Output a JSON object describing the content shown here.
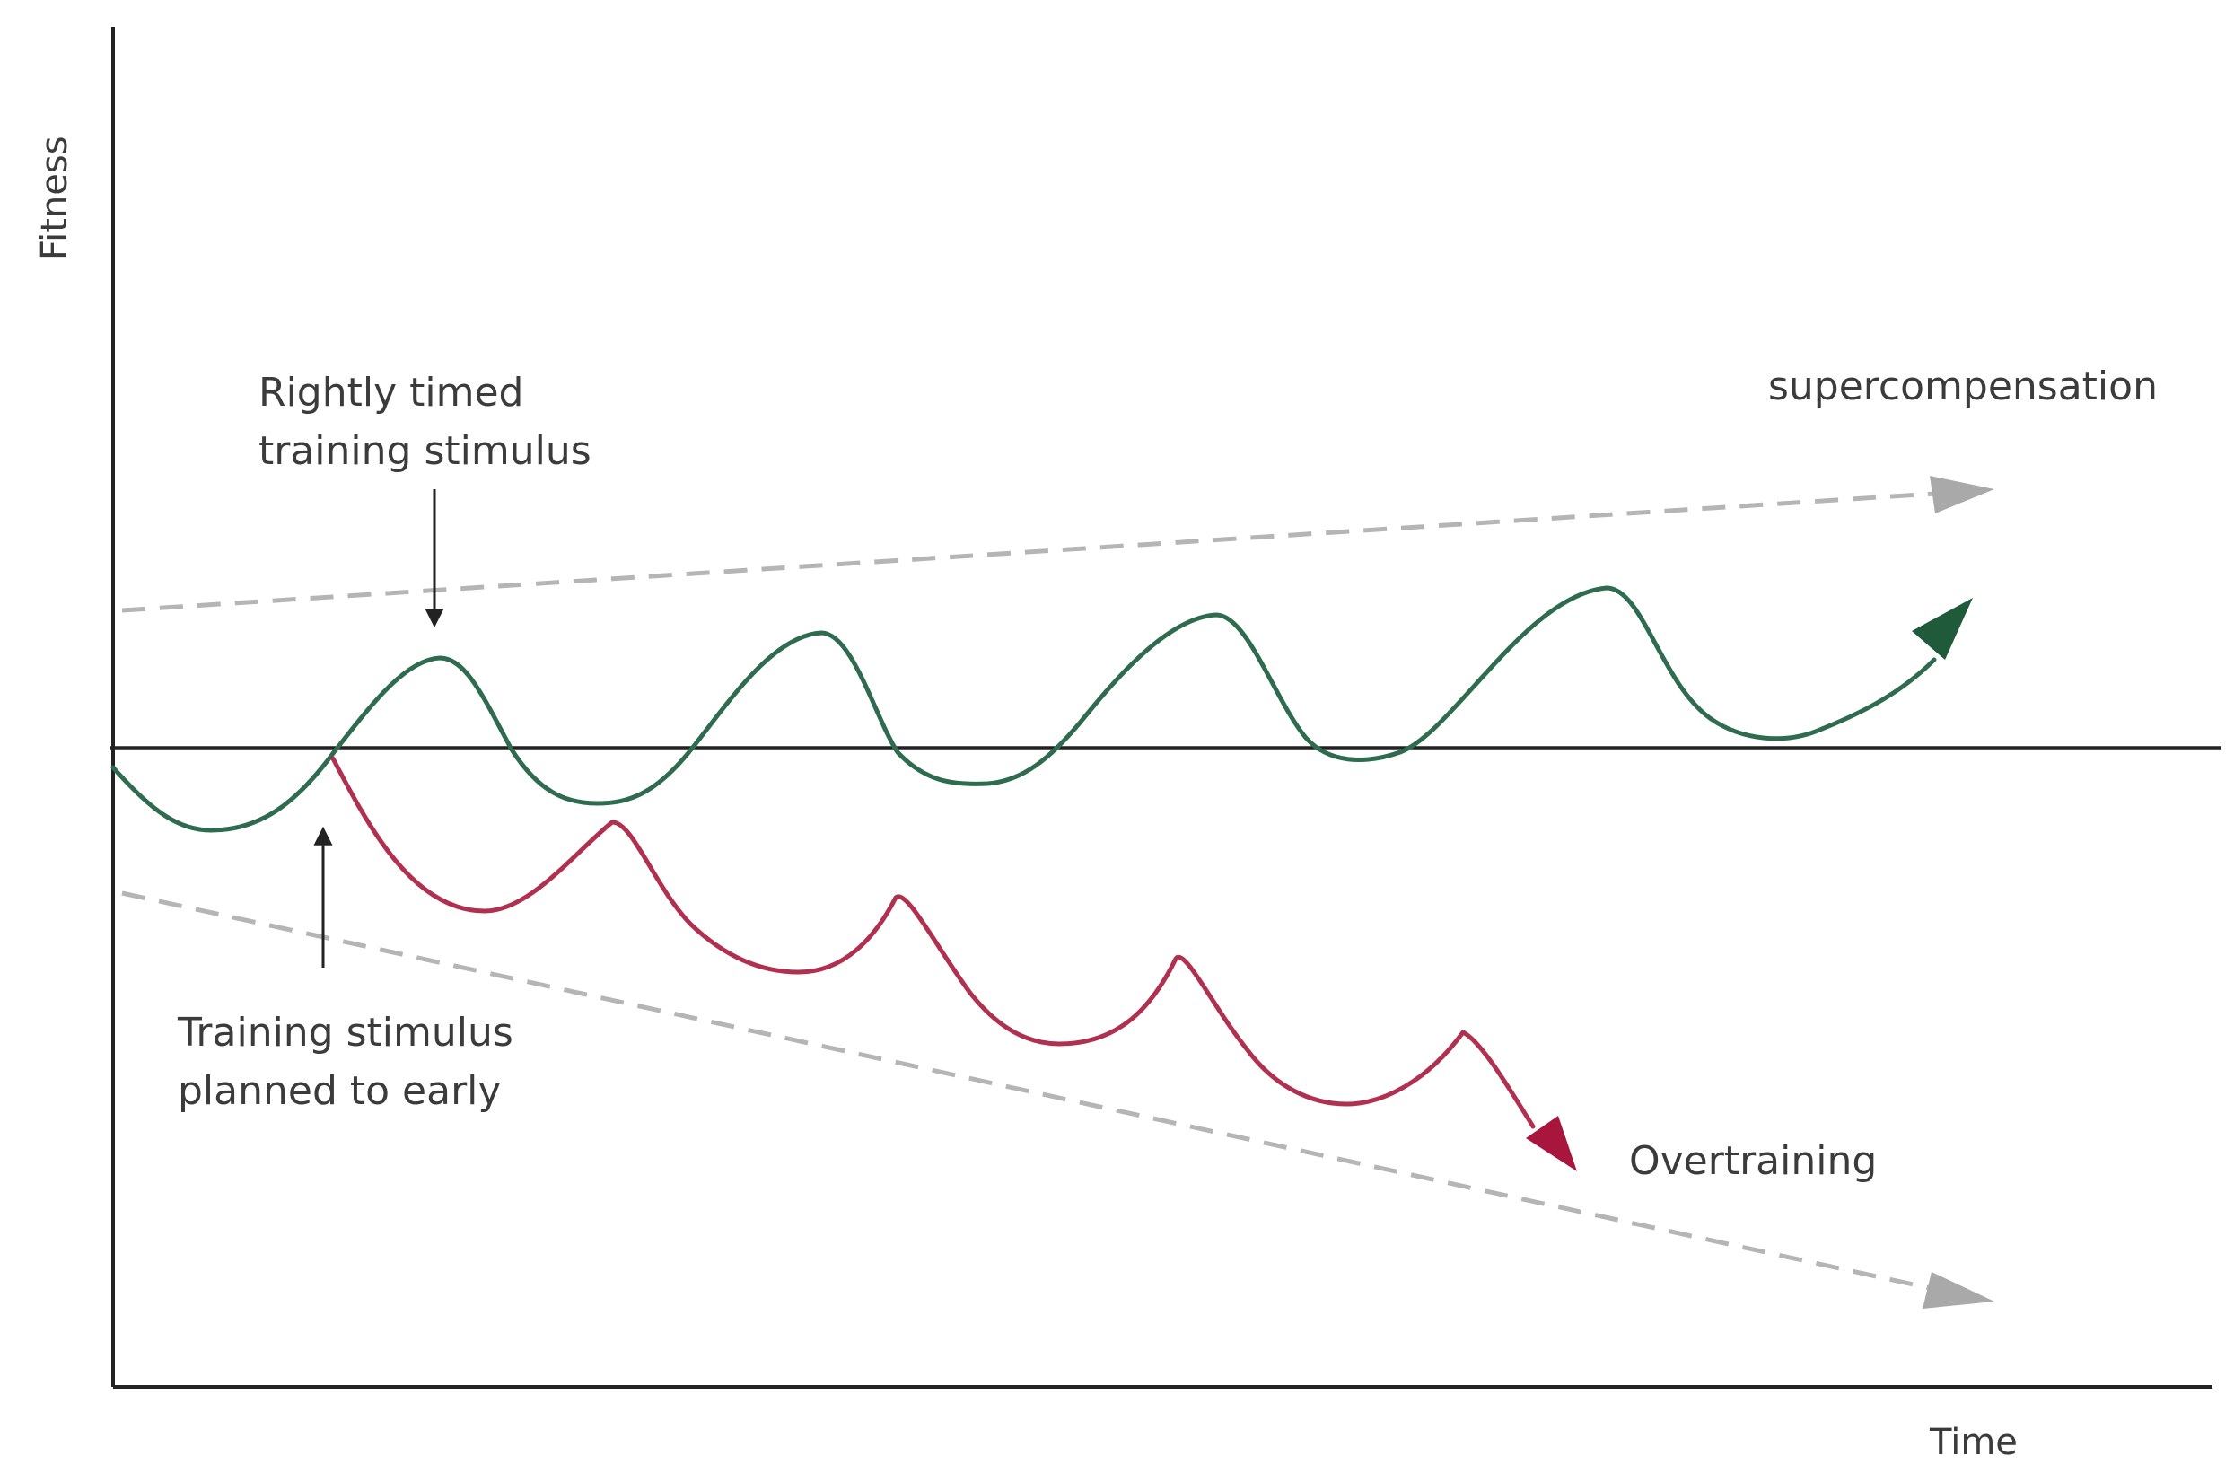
{
  "axes": {
    "y_label": "Fitness",
    "x_label": "Time"
  },
  "annotations": {
    "rightly_timed_line1": "Rightly timed",
    "rightly_timed_line2": "training stimulus",
    "too_early_line1": "Training stimulus",
    "too_early_line2": "planned to early",
    "supercompensation": "supercompensation",
    "overtraining": "Overtraining"
  },
  "colors": {
    "supercompensation_curve": "#2f6b4f",
    "overtraining_curve": "#b0304f",
    "trend_lines": "#b5b5b5",
    "axes": "#222222",
    "text": "#3b3b3b"
  }
}
